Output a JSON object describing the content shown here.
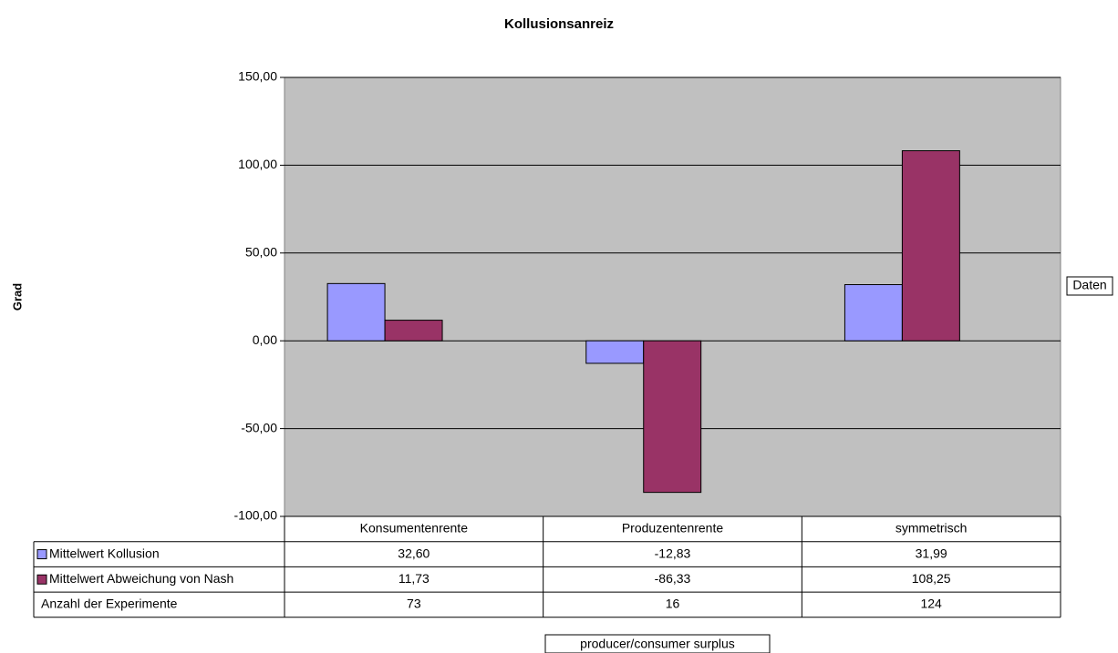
{
  "chart_data": {
    "type": "bar",
    "title": "Kollusionsanreiz",
    "y_label": "Grad",
    "x_label": "producer/consumer surplus",
    "data_box": "Daten",
    "categories": [
      "Konsumentenrente",
      "Produzentenrente",
      "symmetrisch"
    ],
    "series": [
      {
        "name": "Mittelwert Kollusion",
        "color": "#9999ff",
        "values": [
          32.6,
          -12.83,
          31.99
        ],
        "value_labels": [
          "32,60",
          "-12,83",
          "31,99"
        ]
      },
      {
        "name": "Mittelwert Abweichung von Nash",
        "color": "#993366",
        "values": [
          11.73,
          -86.33,
          108.25
        ],
        "value_labels": [
          "11,73",
          "-86,33",
          "108,25"
        ]
      }
    ],
    "table_rows": [
      {
        "name": "Anzahl der Experimente",
        "values": [
          73,
          16,
          124
        ]
      }
    ],
    "ylim": [
      -100,
      150
    ],
    "yticks": [
      {
        "value": -100,
        "label": "-100,00"
      },
      {
        "value": -50,
        "label": "-50,00"
      },
      {
        "value": 0,
        "label": "0,00"
      },
      {
        "value": 50,
        "label": "50,00"
      },
      {
        "value": 100,
        "label": "100,00"
      },
      {
        "value": 150,
        "label": "150,00"
      }
    ],
    "grid": true,
    "plot_background": "#c0c0c0"
  }
}
